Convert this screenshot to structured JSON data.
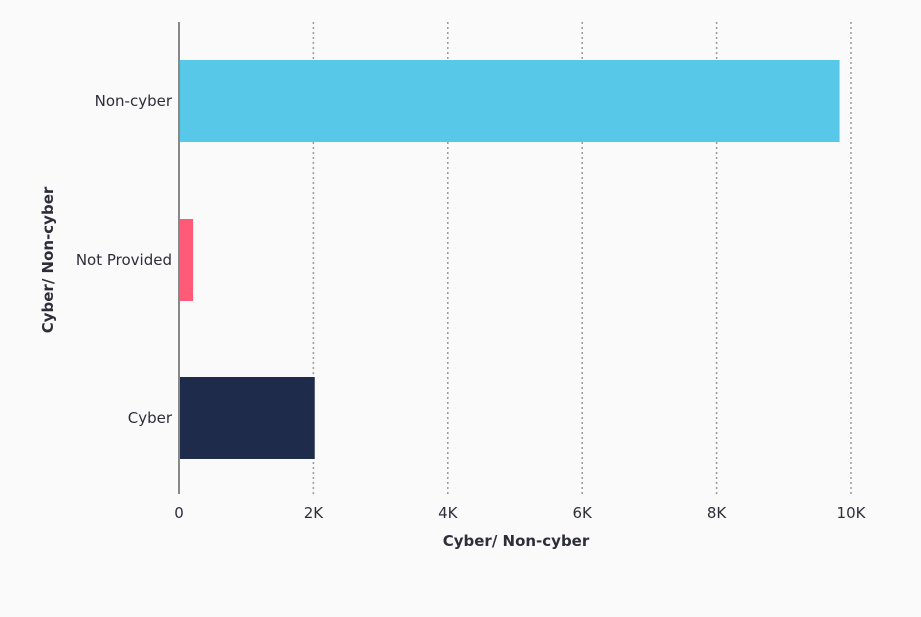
{
  "chart_data": {
    "type": "bar",
    "orientation": "horizontal",
    "categories": [
      "Non-cyber",
      "Not Provided",
      "Cyber"
    ],
    "values": [
      9830,
      210,
      2020
    ],
    "colors": [
      "#58c8e8",
      "#ff5a78",
      "#1f2b4b"
    ],
    "xlabel": "Cyber/ Non-cyber",
    "ylabel": "Cyber/ Non-cyber",
    "xlim": [
      0,
      10000
    ],
    "xticks": [
      0,
      2000,
      4000,
      6000,
      8000,
      10000
    ],
    "xtick_labels": [
      "0",
      "2K",
      "4K",
      "6K",
      "8K",
      "10K"
    ],
    "grid": "x-dotted",
    "legend": "none"
  }
}
